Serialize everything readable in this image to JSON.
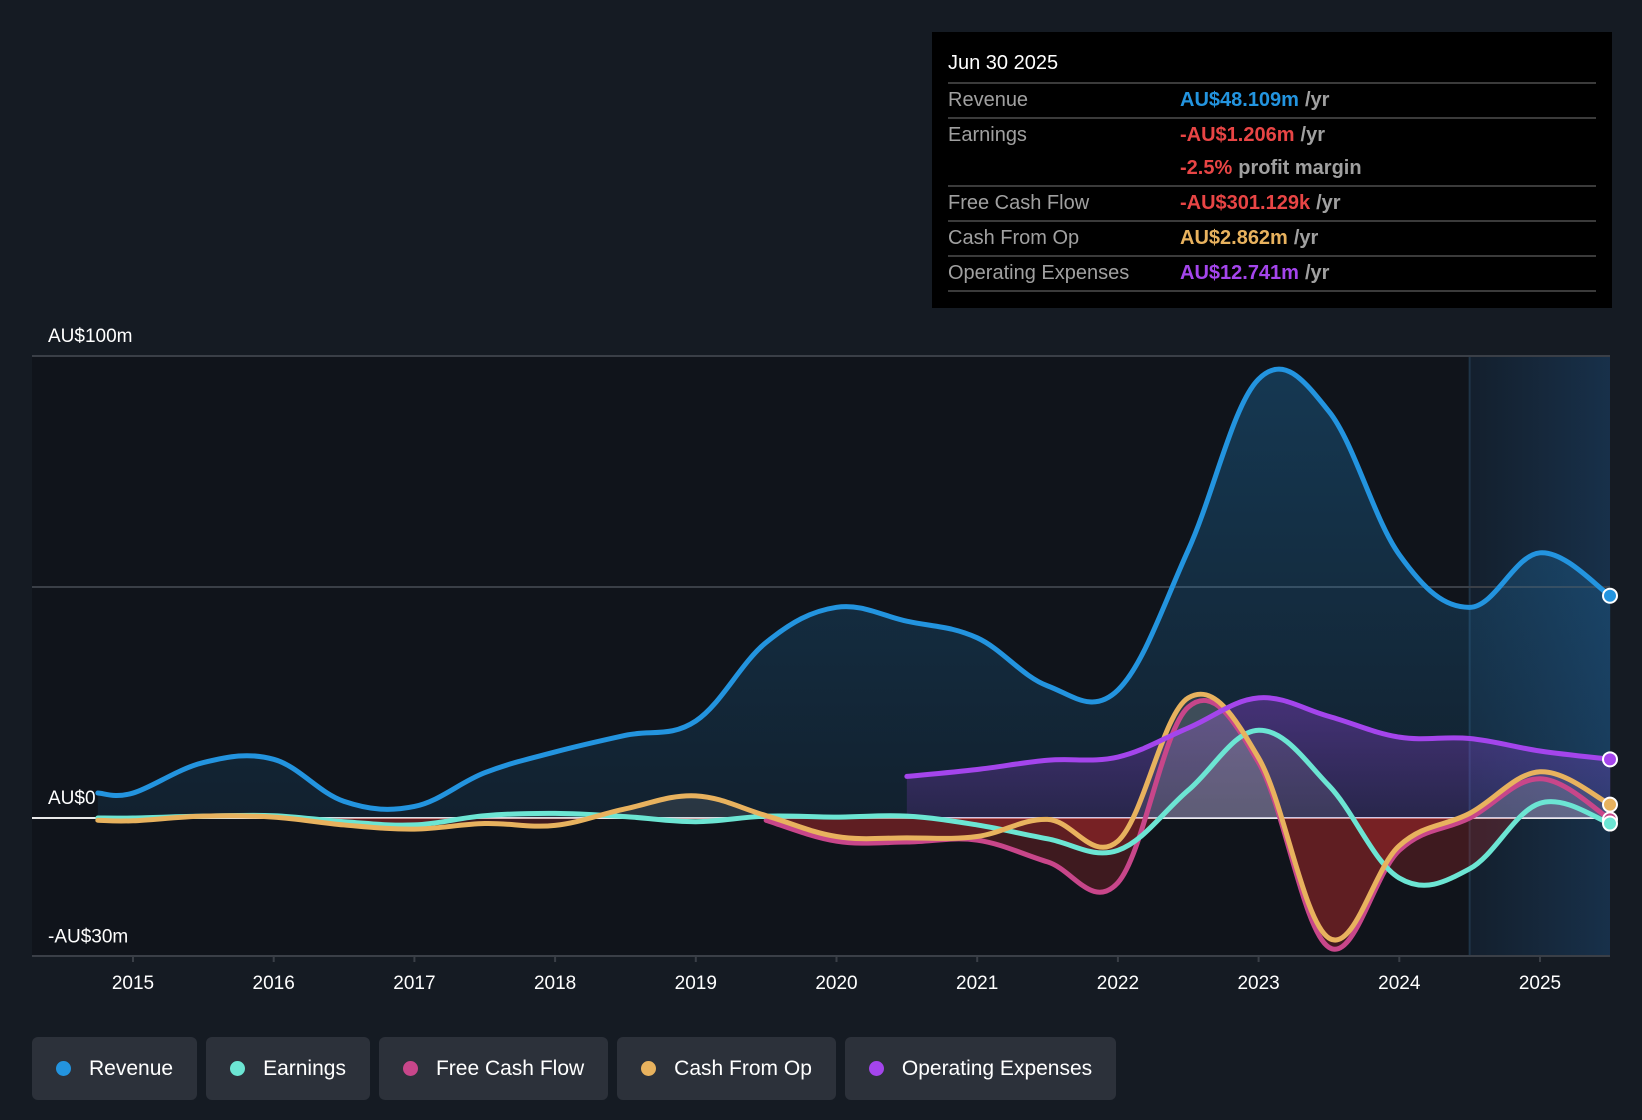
{
  "colors": {
    "revenue": "#2394df",
    "earnings": "#6ce5d3",
    "free_cash_flow": "#c8468a",
    "cash_from_op": "#e8b25e",
    "operating_expenses": "#a445ec",
    "negative": "#e84545",
    "muted": "#a0a0a0"
  },
  "tooltip": {
    "date": "Jun 30 2025",
    "rows": [
      {
        "label": "Revenue",
        "value": "AU$48.109m",
        "unit": "/yr",
        "color_key": "revenue"
      },
      {
        "label": "Earnings",
        "value": "-AU$1.206m",
        "unit": "/yr",
        "color_key": "negative"
      },
      {
        "label": "",
        "value": "-2.5%",
        "unit": "profit margin",
        "color_key": "negative"
      },
      {
        "label": "Free Cash Flow",
        "value": "-AU$301.129k",
        "unit": "/yr",
        "color_key": "negative"
      },
      {
        "label": "Cash From Op",
        "value": "AU$2.862m",
        "unit": "/yr",
        "color_key": "cash_from_op"
      },
      {
        "label": "Operating Expenses",
        "value": "AU$12.741m",
        "unit": "/yr",
        "color_key": "operating_expenses"
      }
    ]
  },
  "legend": [
    {
      "label": "Revenue",
      "color_key": "revenue"
    },
    {
      "label": "Earnings",
      "color_key": "earnings"
    },
    {
      "label": "Free Cash Flow",
      "color_key": "free_cash_flow"
    },
    {
      "label": "Cash From Op",
      "color_key": "cash_from_op"
    },
    {
      "label": "Operating Expenses",
      "color_key": "operating_expenses"
    }
  ],
  "chart_data": {
    "type": "area",
    "title": "",
    "xlabel": "",
    "ylabel": "",
    "ylim": [
      -30,
      100
    ],
    "xlim": [
      2014.3,
      2025.5
    ],
    "forecast_shade_from": 2024.5,
    "y_tick_labels": [
      {
        "value": 100,
        "label": "AU$100m"
      },
      {
        "value": 0,
        "label": "AU$0"
      },
      {
        "value": -30,
        "label": "-AU$30m"
      }
    ],
    "gridlines": [
      100,
      50,
      0
    ],
    "x_ticks": [
      2015,
      2016,
      2017,
      2018,
      2019,
      2020,
      2021,
      2022,
      2023,
      2024,
      2025
    ],
    "x_tick_labels": [
      "2015",
      "2016",
      "2017",
      "2018",
      "2019",
      "2020",
      "2021",
      "2022",
      "2023",
      "2024",
      "2025"
    ],
    "units": "AU$ millions",
    "series": [
      {
        "name": "Revenue",
        "key": "revenue",
        "x": [
          2014.75,
          2015.0,
          2015.5,
          2016.0,
          2016.5,
          2017.0,
          2017.5,
          2018.0,
          2018.5,
          2019.0,
          2019.5,
          2020.0,
          2020.5,
          2021.0,
          2021.5,
          2022.0,
          2022.5,
          2023.0,
          2023.5,
          2024.0,
          2024.5,
          2025.0,
          2025.5
        ],
        "values": [
          5.4,
          5.4,
          12.0,
          12.7,
          3.6,
          2.5,
          9.8,
          14.3,
          17.9,
          21.0,
          38.0,
          45.6,
          42.6,
          39.0,
          28.6,
          27.7,
          58.0,
          95.0,
          88.0,
          57.0,
          45.6,
          57.4,
          48.1
        ]
      },
      {
        "name": "Earnings",
        "key": "earnings",
        "x": [
          2014.75,
          2015.0,
          2015.5,
          2016.0,
          2016.5,
          2017.0,
          2017.5,
          2018.0,
          2018.5,
          2019.0,
          2019.5,
          2020.0,
          2020.5,
          2021.0,
          2021.5,
          2022.0,
          2022.5,
          2023.0,
          2023.5,
          2024.0,
          2024.5,
          2025.0,
          2025.5
        ],
        "values": [
          0.0,
          0.0,
          0.4,
          0.5,
          -0.8,
          -1.5,
          0.5,
          1.0,
          0.3,
          -0.8,
          0.4,
          0.2,
          0.4,
          -1.5,
          -4.5,
          -7.0,
          6.0,
          19.0,
          7.0,
          -13.0,
          -11.0,
          3.2,
          -1.2
        ]
      },
      {
        "name": "Free Cash Flow",
        "key": "free_cash_flow",
        "x": [
          2019.5,
          2020.0,
          2020.5,
          2021.0,
          2021.5,
          2022.0,
          2022.5,
          2023.0,
          2023.5,
          2024.0,
          2024.5,
          2025.0,
          2025.5
        ],
        "values": [
          -0.5,
          -5.0,
          -5.2,
          -4.8,
          -9.5,
          -14.0,
          24.0,
          12.0,
          -28.0,
          -7.0,
          0.0,
          8.5,
          -0.3
        ]
      },
      {
        "name": "Cash From Op",
        "key": "cash_from_op",
        "x": [
          2014.75,
          2015.0,
          2015.5,
          2016.0,
          2016.5,
          2017.0,
          2017.5,
          2018.0,
          2018.5,
          2019.0,
          2019.5,
          2020.0,
          2020.5,
          2021.0,
          2021.5,
          2022.0,
          2022.5,
          2023.0,
          2023.5,
          2024.0,
          2024.5,
          2025.0,
          2025.5
        ],
        "values": [
          -0.5,
          -0.6,
          0.4,
          0.2,
          -1.5,
          -2.4,
          -1.2,
          -1.6,
          2.0,
          4.8,
          0.5,
          -4.0,
          -4.3,
          -4.0,
          -0.3,
          -5.0,
          26.0,
          13.0,
          -26.0,
          -6.0,
          1.0,
          10.0,
          2.9
        ]
      },
      {
        "name": "Operating Expenses",
        "key": "operating_expenses",
        "x": [
          2020.5,
          2021.0,
          2021.5,
          2022.0,
          2022.5,
          2023.0,
          2023.5,
          2024.0,
          2024.5,
          2025.0,
          2025.5
        ],
        "values": [
          9.0,
          10.5,
          12.5,
          13.2,
          19.5,
          26.0,
          22.0,
          17.5,
          17.2,
          14.5,
          12.7
        ]
      }
    ]
  }
}
